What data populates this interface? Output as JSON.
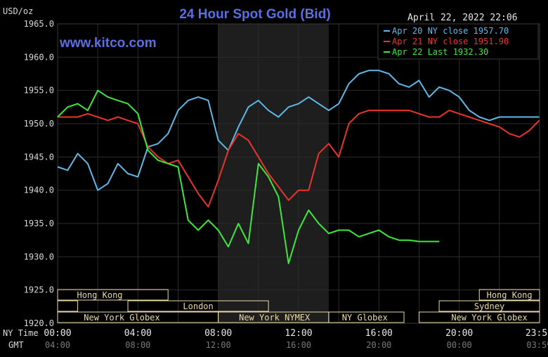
{
  "chart_data": {
    "type": "line",
    "title": "24 Hour Spot Gold (Bid)",
    "watermark": "www.kitco.com",
    "timestamp": "April 22, 2022 22:06",
    "unit_label": "USD/oz",
    "ylim": [
      1920,
      1965
    ],
    "y_ticks": [
      "1965.0",
      "1960.0",
      "1955.0",
      "1950.0",
      "1945.0",
      "1940.0",
      "1935.0",
      "1930.0",
      "1925.0",
      "1920.0"
    ],
    "x_time_label": "NY Time",
    "x_gmt_label": "GMT",
    "x_ticks_ny": [
      "00:00",
      "04:00",
      "08:00",
      "12:00",
      "16:00",
      "20:00",
      "23:59"
    ],
    "x_ticks_gmt": [
      "04:00",
      "08:00",
      "12:00",
      "16:00",
      "20:00",
      "00:00",
      "03:59"
    ],
    "colors": {
      "background": "#000000",
      "grid": "#2b2b2b",
      "shaded_session": "#1e1e1e",
      "title": "#5a6ee6",
      "watermark": "#5a6ee6",
      "axis_text": "#d8d8d8",
      "session_bar": "#e8d9a8"
    },
    "legend": [
      {
        "label": "Apr 20 NY close 1957.70",
        "color": "#5fb8e8"
      },
      {
        "label": "Apr 21 NY close 1951.90",
        "color": "#e8342a"
      },
      {
        "label": "Apr 22 Last 1932.30",
        "color": "#3ee83a"
      }
    ],
    "series": [
      {
        "name": "Apr 20",
        "color": "#5fb8e8",
        "x": [
          0,
          0.5,
          1,
          1.5,
          2,
          2.5,
          3,
          3.5,
          4,
          4.5,
          5,
          5.5,
          6,
          6.5,
          7,
          7.5,
          8,
          8.5,
          9,
          9.5,
          10,
          10.5,
          11,
          11.5,
          12,
          12.5,
          13,
          13.5,
          14,
          14.5,
          15,
          15.5,
          16,
          16.5,
          17,
          17.5,
          18,
          18.5,
          19,
          19.5,
          20,
          20.5,
          21,
          21.5,
          22,
          22.5,
          23,
          23.5,
          23.98
        ],
        "values": [
          1943.5,
          1943.0,
          1945.5,
          1944.0,
          1940.0,
          1941.0,
          1944.0,
          1942.5,
          1942.0,
          1946.5,
          1947.0,
          1948.5,
          1952.0,
          1953.5,
          1954.0,
          1953.5,
          1947.5,
          1946.0,
          1949.5,
          1952.5,
          1953.5,
          1952.0,
          1951.0,
          1952.5,
          1953.0,
          1954.0,
          1953.0,
          1952.0,
          1953.0,
          1956.0,
          1957.5,
          1958.0,
          1958.0,
          1957.5,
          1956.0,
          1955.5,
          1956.5,
          1954.0,
          1955.5,
          1955.0,
          1954.0,
          1952.0,
          1951.0,
          1950.5,
          1951.0,
          1951.0,
          1951.0,
          1951.0,
          1951.0
        ]
      },
      {
        "name": "Apr 21",
        "color": "#e8342a",
        "x": [
          0,
          0.5,
          1,
          1.5,
          2,
          2.5,
          3,
          3.5,
          4,
          4.5,
          5,
          5.5,
          6,
          6.5,
          7,
          7.5,
          8,
          8.5,
          9,
          9.5,
          10,
          10.5,
          11,
          11.5,
          12,
          12.5,
          13,
          13.5,
          14,
          14.5,
          15,
          15.5,
          16,
          16.5,
          17,
          17.5,
          18,
          18.5,
          19,
          19.5,
          20,
          20.5,
          21,
          21.5,
          22,
          22.5,
          23,
          23.5,
          23.98
        ],
        "values": [
          1951.0,
          1951.0,
          1951.0,
          1951.5,
          1951.0,
          1950.5,
          1951.0,
          1950.5,
          1950.0,
          1946.5,
          1945.0,
          1944.0,
          1944.5,
          1942.0,
          1939.5,
          1937.5,
          1941.5,
          1946.0,
          1948.5,
          1947.5,
          1945.0,
          1942.5,
          1940.5,
          1938.5,
          1940.0,
          1940.0,
          1945.5,
          1947.0,
          1945.0,
          1950.0,
          1951.5,
          1952.0,
          1952.0,
          1952.0,
          1952.0,
          1952.0,
          1951.5,
          1951.0,
          1951.0,
          1952.0,
          1951.5,
          1951.0,
          1950.5,
          1950.0,
          1949.5,
          1948.5,
          1948.0,
          1949.0,
          1950.5
        ]
      },
      {
        "name": "Apr 22",
        "color": "#3ee83a",
        "x": [
          0,
          0.5,
          1,
          1.5,
          2,
          2.5,
          3,
          3.5,
          4,
          4.5,
          5,
          5.5,
          6,
          6.5,
          7,
          7.5,
          8,
          8.5,
          9,
          9.5,
          10,
          10.5,
          11,
          11.5,
          12,
          12.5,
          13,
          13.5,
          14,
          14.5,
          15,
          15.5,
          16,
          16.5,
          17,
          17.5,
          18,
          18.5,
          19
        ],
        "values": [
          1951.0,
          1952.5,
          1953.0,
          1952.0,
          1955.0,
          1954.0,
          1953.5,
          1953.0,
          1951.5,
          1946.0,
          1944.5,
          1944.0,
          1943.5,
          1935.5,
          1934.0,
          1935.5,
          1934.0,
          1931.5,
          1935.0,
          1932.0,
          1944.0,
          1942.0,
          1939.0,
          1929.0,
          1934.0,
          1937.0,
          1935.0,
          1933.5,
          1934.0,
          1934.0,
          1933.0,
          1933.5,
          1934.0,
          1933.0,
          1932.5,
          1932.5,
          1932.3,
          1932.3,
          1932.3
        ]
      }
    ],
    "shaded_session": {
      "start": 8,
      "end": 13.5
    },
    "sessions": [
      {
        "name": "Hong Kong",
        "rows": [
          [
            0,
            5.5
          ],
          [
            21,
            24
          ]
        ],
        "row": 0
      },
      {
        "name": "London",
        "rows": [
          [
            0,
            1
          ],
          [
            3.5,
            10.5
          ]
        ],
        "row": 1
      },
      {
        "name": "Sydney",
        "rows": [
          [
            19,
            24
          ]
        ],
        "row": 1
      },
      {
        "name": "New York Globex",
        "rows": [
          [
            0,
            8
          ]
        ],
        "row": 2
      },
      {
        "name": "New York NYMEX",
        "rows": [
          [
            8,
            13.5
          ]
        ],
        "row": 2
      },
      {
        "name": "NY Globex",
        "rows": [
          [
            13.5,
            17.25
          ]
        ],
        "row": 2
      },
      {
        "name": "New York Globex",
        "rows": [
          [
            18,
            24
          ]
        ],
        "row": 2
      }
    ],
    "session_label_anchors": [
      {
        "name": "Hong Kong",
        "at": 2.1,
        "row": 0
      },
      {
        "name": "Hong Kong",
        "at": 22.5,
        "row": 0
      },
      {
        "name": "London",
        "at": 7.0,
        "row": 1
      },
      {
        "name": "Sydney",
        "at": 21.5,
        "row": 1
      },
      {
        "name": "New York Globex",
        "at": 3.2,
        "row": 2
      },
      {
        "name": "New York NYMEX",
        "at": 10.8,
        "row": 2
      },
      {
        "name": "NY Globex",
        "at": 15.3,
        "row": 2
      },
      {
        "name": "New York Globex",
        "at": 21.5,
        "row": 2
      }
    ]
  }
}
